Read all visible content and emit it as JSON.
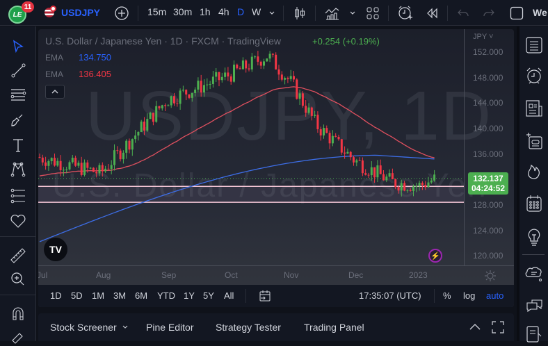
{
  "topbar": {
    "notification_count": "11",
    "logo_text": "LE",
    "symbol": "USDJPY",
    "intervals": [
      "15m",
      "30m",
      "1h",
      "4h",
      "D",
      "W"
    ],
    "active_interval": "D",
    "overflow_label": "We",
    "icons": [
      "add-symbol-icon",
      "interval-dropdown-icon",
      "candles-chart-type-icon",
      "indicators-icon",
      "indicators-dropdown-icon",
      "layout-grid-icon",
      "alert-add-icon",
      "replay-icon",
      "undo-icon",
      "redo-icon",
      "fullscreen-square-icon"
    ]
  },
  "chart": {
    "title": "U.S. Dollar / Japanese Yen · 1D · FXCM · TradingView",
    "change": "+0.254 (+0.19%)",
    "ema": [
      {
        "label": "EMA",
        "value": "134.750",
        "color": "#2962ff"
      },
      {
        "label": "EMA",
        "value": "136.405",
        "color": "#f23645"
      }
    ],
    "watermark_symbol": "USDJPY, 1D",
    "watermark_name": "U.S. Dollar / Japanese Yen",
    "currency": "JPY",
    "last_price": "132.137",
    "countdown": "04:24:52",
    "price_ticks": [
      "152.000",
      "148.000",
      "144.000",
      "140.000",
      "136.000",
      "128.000",
      "124.000",
      "120.000"
    ],
    "time_ticks": [
      "Jul",
      "Aug",
      "Sep",
      "Oct",
      "Nov",
      "Dec",
      "2023"
    ],
    "colors": {
      "up": "#4caf50",
      "down": "#f23645",
      "ema_fast": "#e0505f",
      "ema_slow": "#3d6ee8",
      "hline": "#f5c6d6"
    }
  },
  "bottombar": {
    "ranges": [
      "1D",
      "5D",
      "1M",
      "3M",
      "6M",
      "YTD",
      "1Y",
      "5Y",
      "All"
    ],
    "clock": "17:35:07 (UTC)",
    "percent": "%",
    "log": "log",
    "auto": "auto"
  },
  "panels": {
    "tabs": [
      "Stock Screener",
      "Pine Editor",
      "Strategy Tester",
      "Trading Panel"
    ]
  },
  "chart_data": {
    "type": "candlestick",
    "title": "U.S. Dollar / Japanese Yen · 1D · FXCM",
    "xlabel": "",
    "ylabel": "JPY",
    "ylim": [
      118,
      154
    ],
    "x_ticks": [
      "Jul",
      "Aug",
      "Sep",
      "Oct",
      "Nov",
      "Dec",
      "2023"
    ],
    "y_ticks": [
      120,
      124,
      128,
      132,
      136,
      140,
      144,
      148,
      152
    ],
    "last_price": 132.137,
    "series": [
      {
        "name": "EMA (fast)",
        "last": 136.405
      },
      {
        "name": "EMA (slow)",
        "last": 134.75
      }
    ],
    "horizontal_lines": [
      130.9,
      128.4
    ],
    "approx_path": [
      {
        "date": "Jul",
        "close": 135.5
      },
      {
        "date": "Aug",
        "close": 133.0
      },
      {
        "date": "Sep",
        "close": 144.5
      },
      {
        "date": "Oct",
        "close": 148.5
      },
      {
        "date": "Oct-20",
        "close": 151.5
      },
      {
        "date": "Nov",
        "close": 147.0
      },
      {
        "date": "Nov-10",
        "close": 140.5
      },
      {
        "date": "Dec",
        "close": 135.0
      },
      {
        "date": "Dec-20",
        "close": 131.5
      },
      {
        "date": "2023",
        "close": 131.0
      },
      {
        "date": "Jan-13",
        "close": 132.137
      }
    ]
  }
}
